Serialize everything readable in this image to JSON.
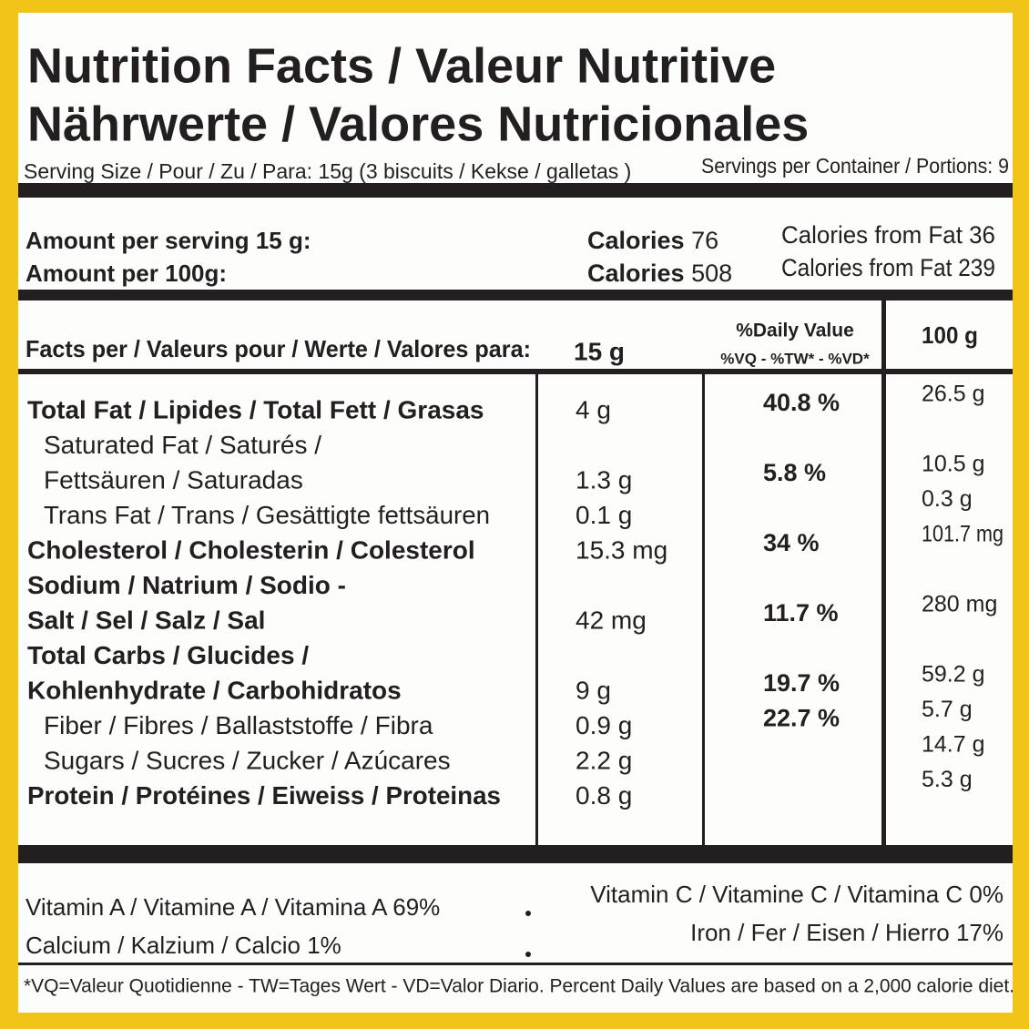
{
  "title_lines": [
    "Nutrition Facts / Valeur Nutritive",
    "Nährwerte / Valores Nutricionales"
  ],
  "serving": {
    "size": "Serving Size / Pour / Zu / Para: 15g (3 biscuits / Kekse / galletas )",
    "per_container": "Servings per Container / Portions: 9"
  },
  "amounts": [
    {
      "label": "Amount per serving 15 g:",
      "calories_label": "Calories",
      "calories": 76,
      "fat_label": "Calories from Fat",
      "fat": 36
    },
    {
      "label": "Amount per 100g:",
      "calories_label": "Calories",
      "calories": 508,
      "fat_label": "Calories from Fat",
      "fat": 239
    }
  ],
  "table": {
    "header": {
      "facts": "Facts per / Valeurs pour / Werte / Valores para:",
      "per_serving": "15 g",
      "daily_value": "%Daily Value",
      "daily_value_sub": "%VQ - %TW* - %VD*",
      "per_100g": "100 g"
    },
    "rows": [
      {
        "name": [
          "Total Fat / Lipides / Total Fett / Grasas"
        ],
        "bold": true,
        "per_serving": "4 g",
        "daily_value": "40.8 %",
        "per_100g": "26.5 g"
      },
      {
        "name": [
          "Saturated Fat / Saturés /",
          "Fettsäuren / Saturadas"
        ],
        "bold": false,
        "per_serving": "1.3 g",
        "daily_value": "5.8 %",
        "per_100g": "10.5 g"
      },
      {
        "name": [
          "Trans Fat / Trans / Gesättigte fettsäuren"
        ],
        "bold": false,
        "per_serving": "0.1 g",
        "per_100g": "0.3 g"
      },
      {
        "name": [
          "Cholesterol / Cholesterin / Colesterol"
        ],
        "bold": true,
        "per_serving": "15.3 mg",
        "daily_value": "34 %",
        "per_100g": "101.7 mg"
      },
      {
        "name": [
          "Sodium / Natrium / Sodio -",
          "Salt / Sel / Salz / Sal"
        ],
        "bold": true,
        "per_serving": "42 mg",
        "daily_value": "11.7 %",
        "per_100g": "280 mg"
      },
      {
        "name": [
          "Total Carbs / Glucides /",
          "Kohlenhydrate / Carbohidratos"
        ],
        "bold": true,
        "per_serving": "9 g",
        "daily_value": "19.7 %",
        "per_100g": "59.2 g"
      },
      {
        "name": [
          "Fiber / Fibres / Ballaststoffe / Fibra"
        ],
        "bold": false,
        "per_serving": "0.9 g",
        "daily_value": "22.7 %",
        "per_100g": "5.7 g"
      },
      {
        "name": [
          "Sugars / Sucres / Zucker / Azúcares"
        ],
        "bold": false,
        "per_serving": "2.2 g",
        "per_100g": "14.7 g"
      },
      {
        "name": [
          "Protein / Protéines / Eiweiss / Proteinas"
        ],
        "bold": true,
        "per_serving": "0.8 g",
        "per_100g": "5.3 g"
      }
    ]
  },
  "vitamins": [
    {
      "left": "Vitamin A / Vitamine A / Vitamina A  69%",
      "right": "Vitamin C / Vitamine C / Vitamina C  0%"
    },
    {
      "left": "Calcium / Kalzium / Calcio  1%",
      "right": "Iron / Fer / Eisen / Hierro  17%"
    }
  ],
  "footnote": "*VQ=Valeur Quotidienne - TW=Tages Wert - VD=Valor Diario. Percent Daily Values are based on a 2,000 calorie diet."
}
